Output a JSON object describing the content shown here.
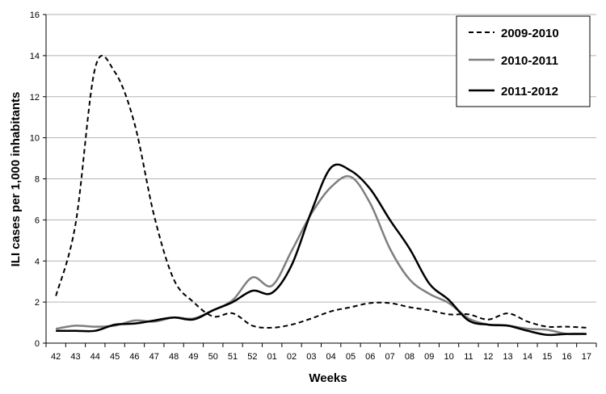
{
  "chart_data": {
    "type": "line",
    "xlabel": "Weeks",
    "ylabel": "ILI cases per 1,000 inhabitants",
    "ylim": [
      0,
      16
    ],
    "yticks": [
      "0",
      "2",
      "4",
      "6",
      "8",
      "10",
      "12",
      "14",
      "16"
    ],
    "grid": "horizontal",
    "legend_position": "top-right",
    "categories": [
      "42",
      "43",
      "44",
      "45",
      "46",
      "47",
      "48",
      "49",
      "50",
      "51",
      "52",
      "01",
      "02",
      "03",
      "04",
      "05",
      "06",
      "07",
      "08",
      "09",
      "10",
      "11",
      "12",
      "13",
      "14",
      "15",
      "16",
      "17"
    ],
    "series": [
      {
        "name": "2009-2010",
        "color": "#000000",
        "dash": "dashed",
        "values": [
          2.3,
          5.8,
          13.4,
          13.2,
          10.7,
          6.2,
          3.1,
          2.0,
          1.3,
          1.45,
          0.85,
          0.75,
          0.9,
          1.2,
          1.55,
          1.75,
          1.95,
          1.95,
          1.75,
          1.6,
          1.4,
          1.4,
          1.15,
          1.45,
          1.05,
          0.8,
          0.8,
          0.75
        ]
      },
      {
        "name": "2010-2011",
        "color": "#7f7f7f",
        "dash": "solid",
        "values": [
          0.7,
          0.85,
          0.8,
          0.85,
          1.1,
          1.05,
          1.25,
          1.2,
          1.6,
          2.1,
          3.2,
          2.8,
          4.5,
          6.3,
          7.6,
          8.1,
          6.8,
          4.6,
          3.1,
          2.4,
          1.95,
          1.2,
          0.9,
          0.85,
          0.7,
          0.65,
          0.45,
          0.45
        ]
      },
      {
        "name": "2011-2012",
        "color": "#000000",
        "dash": "solid",
        "values": [
          0.6,
          0.6,
          0.6,
          0.9,
          0.95,
          1.1,
          1.25,
          1.15,
          1.6,
          2.0,
          2.55,
          2.45,
          3.8,
          6.4,
          8.55,
          8.4,
          7.5,
          6.0,
          4.6,
          2.9,
          2.1,
          1.1,
          0.9,
          0.85,
          0.6,
          0.4,
          0.45,
          0.45
        ]
      }
    ]
  }
}
